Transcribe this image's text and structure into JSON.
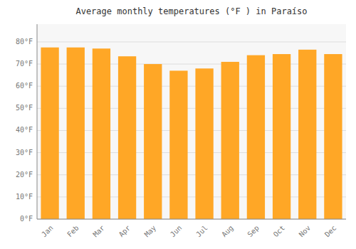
{
  "chart_data": {
    "type": "bar",
    "title": "Average monthly temperatures (°F ) in Paraíso",
    "categories": [
      "Jan",
      "Feb",
      "Mar",
      "Apr",
      "May",
      "Jun",
      "Jul",
      "Aug",
      "Sep",
      "Oct",
      "Nov",
      "Dec"
    ],
    "values": [
      77.5,
      77.5,
      77,
      73.5,
      70,
      67,
      68,
      71,
      74,
      74.5,
      76.5,
      74.5
    ],
    "color": "#FFA726",
    "ylim": [
      0,
      88
    ],
    "yticks": [
      {
        "value": 0,
        "label": "0°F"
      },
      {
        "value": 10,
        "label": "10°F"
      },
      {
        "value": 20,
        "label": "20°F"
      },
      {
        "value": 30,
        "label": "30°F"
      },
      {
        "value": 40,
        "label": "40°F"
      },
      {
        "value": 50,
        "label": "50°F"
      },
      {
        "value": 60,
        "label": "60°F"
      },
      {
        "value": 70,
        "label": "70°F"
      },
      {
        "value": 80,
        "label": "80°F"
      }
    ],
    "grid": true
  }
}
